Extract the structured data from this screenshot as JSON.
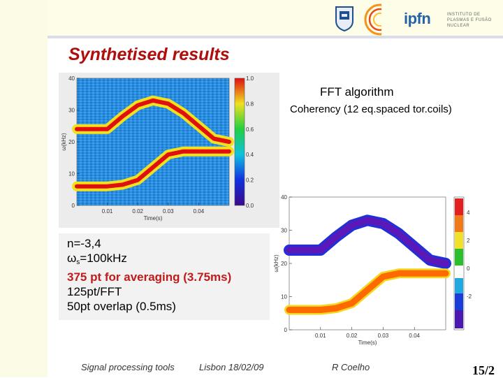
{
  "slide": {
    "title": "Synthetised results",
    "fft_label": "FFT algorithm",
    "coherency_label": "Coherency (12 eq.spaced tor.coils)"
  },
  "params": {
    "n_line": "n=-3,4",
    "omega_symbol": "ω",
    "omega_sub": "s",
    "omega_value": "=100kHz",
    "averaging": "375 pt for averaging (3.75ms)",
    "fft_points": "125pt/FFT",
    "overlap": "50pt overlap (0.5ms)"
  },
  "logo": {
    "name": "ipfn",
    "subtitle": "INSTITUTO DE PLASMAS E FUSÃO NUCLEAR"
  },
  "footer": {
    "left": "Signal processing tools",
    "date": "Lisbon 18/02/09",
    "author": "R Coelho",
    "page": "15/2"
  },
  "chart_data": [
    {
      "type": "heatmap",
      "title": "",
      "xlabel": "Time(s)",
      "ylabel": "ω(kHz)",
      "x_ticks": [
        "0.01",
        "0.02",
        "0.03",
        "0.04"
      ],
      "y_ticks": [
        "0",
        "10",
        "20",
        "30",
        "40"
      ],
      "colorbar_ticks": [
        "0.0",
        "0.2",
        "0.4",
        "0.6",
        "0.8",
        "1.0"
      ],
      "xlim": [
        0,
        0.05
      ],
      "ylim": [
        0,
        40
      ],
      "series": [
        {
          "x": [
            0.0,
            0.01,
            0.015,
            0.02,
            0.025,
            0.03,
            0.035,
            0.04,
            0.045,
            0.05
          ],
          "y": [
            24,
            24,
            28,
            31.5,
            33,
            32,
            29,
            25,
            21,
            20
          ]
        },
        {
          "x": [
            0.0,
            0.01,
            0.015,
            0.02,
            0.025,
            0.03,
            0.035,
            0.04,
            0.045,
            0.05
          ],
          "y": [
            6,
            6,
            6.5,
            8,
            12,
            16,
            17,
            17,
            17,
            17
          ]
        }
      ]
    },
    {
      "type": "heatmap",
      "title": "",
      "xlabel": "Time(s)",
      "ylabel": "ω(kHz)",
      "x_ticks": [
        "0.01",
        "0.02",
        "0.03",
        "0.04"
      ],
      "y_ticks": [
        "0",
        "10",
        "20",
        "30",
        "40"
      ],
      "colorbar_ticks": [
        "-2",
        "0",
        "2",
        "4"
      ],
      "xlim": [
        0,
        0.05
      ],
      "ylim": [
        0,
        40
      ],
      "series": [
        {
          "x": [
            0.0,
            0.01,
            0.015,
            0.02,
            0.025,
            0.03,
            0.035,
            0.04,
            0.045,
            0.05
          ],
          "y": [
            24,
            24,
            28,
            31.5,
            33,
            32,
            29,
            25,
            21,
            20
          ]
        },
        {
          "x": [
            0.0,
            0.01,
            0.015,
            0.02,
            0.025,
            0.03,
            0.035,
            0.04,
            0.045,
            0.05
          ],
          "y": [
            6,
            6,
            6.5,
            8,
            12,
            16,
            17,
            17,
            17,
            17
          ]
        }
      ]
    }
  ],
  "colors": {
    "title": "#b00d0d",
    "highlight": "#c21a1a",
    "spectrogram_background": "#2a8de0",
    "coherency_upper": "#5a18b8",
    "coherency_lower": "#ff6a00"
  }
}
